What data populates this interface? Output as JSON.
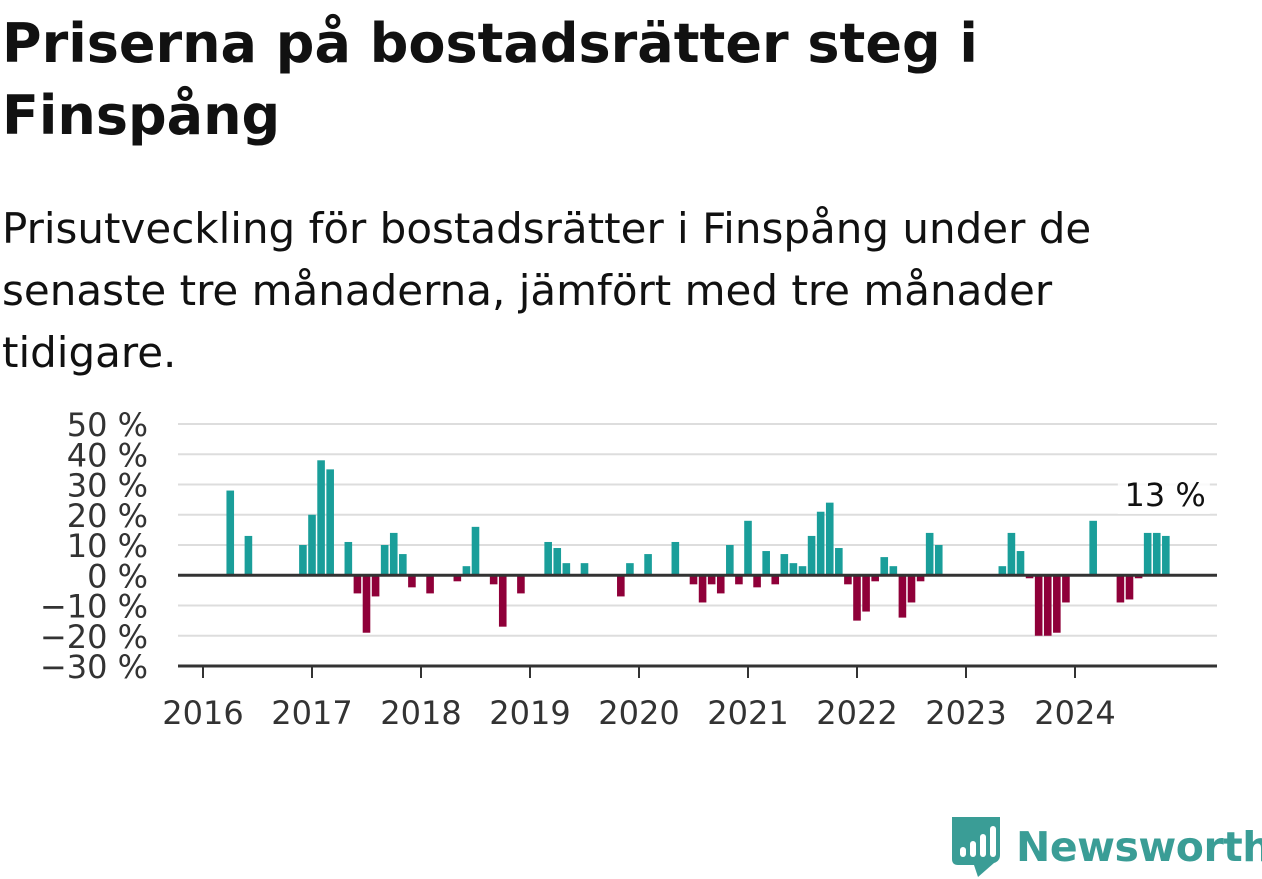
{
  "title": "Priserna på bostadsrätter steg i Finspång",
  "subtitle": "Prisutveckling för bostadsrätter i Finspång under de senaste tre månaderna, jämfört med tre månader tidigare.",
  "brand": {
    "name": "Newsworthy",
    "color": "#3a9d96",
    "logo_icon": "newsworthy-bar-chart-speech-bubble-icon"
  },
  "chart_data": {
    "type": "bar",
    "x_ticks": [
      "2016",
      "2017",
      "2018",
      "2019",
      "2020",
      "2021",
      "2022",
      "2023",
      "2024"
    ],
    "y_ticks": [
      "50 %",
      "40 %",
      "30 %",
      "20 %",
      "10 %",
      "0 %",
      "−10 %",
      "−20 %",
      "−30 %"
    ],
    "ylim": [
      -30,
      50
    ],
    "grid": true,
    "colors": {
      "positive": "#1a9e9a",
      "negative": "#8f0039",
      "grid": "#dddddd",
      "axis": "#333333"
    },
    "annotation": {
      "label": "13 %",
      "at": "2024-11"
    },
    "series": [
      {
        "values": [
          {
            "x": "2016-04",
            "y": 28
          },
          {
            "x": "2016-06",
            "y": 13
          },
          {
            "x": "2016-12",
            "y": 10
          },
          {
            "x": "2017-01",
            "y": 20
          },
          {
            "x": "2017-02",
            "y": 38
          },
          {
            "x": "2017-03",
            "y": 35
          },
          {
            "x": "2017-05",
            "y": 11
          },
          {
            "x": "2017-06",
            "y": -6
          },
          {
            "x": "2017-07",
            "y": -19
          },
          {
            "x": "2017-08",
            "y": -7
          },
          {
            "x": "2017-09",
            "y": 10
          },
          {
            "x": "2017-10",
            "y": 14
          },
          {
            "x": "2017-11",
            "y": 7
          },
          {
            "x": "2017-12",
            "y": -4
          },
          {
            "x": "2018-02",
            "y": -6
          },
          {
            "x": "2018-05",
            "y": -2
          },
          {
            "x": "2018-06",
            "y": 3
          },
          {
            "x": "2018-07",
            "y": 16
          },
          {
            "x": "2018-09",
            "y": -3
          },
          {
            "x": "2018-10",
            "y": -17
          },
          {
            "x": "2018-12",
            "y": -6
          },
          {
            "x": "2019-03",
            "y": 11
          },
          {
            "x": "2019-04",
            "y": 9
          },
          {
            "x": "2019-05",
            "y": 4
          },
          {
            "x": "2019-07",
            "y": 4
          },
          {
            "x": "2019-11",
            "y": -7
          },
          {
            "x": "2019-12",
            "y": 4
          },
          {
            "x": "2020-02",
            "y": 7
          },
          {
            "x": "2020-05",
            "y": 11
          },
          {
            "x": "2020-07",
            "y": -3
          },
          {
            "x": "2020-08",
            "y": -9
          },
          {
            "x": "2020-09",
            "y": -3
          },
          {
            "x": "2020-10",
            "y": -6
          },
          {
            "x": "2020-11",
            "y": 10
          },
          {
            "x": "2020-12",
            "y": -3
          },
          {
            "x": "2021-01",
            "y": 18
          },
          {
            "x": "2021-02",
            "y": -4
          },
          {
            "x": "2021-03",
            "y": 8
          },
          {
            "x": "2021-04",
            "y": -3
          },
          {
            "x": "2021-05",
            "y": 7
          },
          {
            "x": "2021-06",
            "y": 4
          },
          {
            "x": "2021-07",
            "y": 3
          },
          {
            "x": "2021-08",
            "y": 13
          },
          {
            "x": "2021-09",
            "y": 21
          },
          {
            "x": "2021-10",
            "y": 24
          },
          {
            "x": "2021-11",
            "y": 9
          },
          {
            "x": "2021-12",
            "y": -3
          },
          {
            "x": "2022-01",
            "y": -15
          },
          {
            "x": "2022-02",
            "y": -12
          },
          {
            "x": "2022-03",
            "y": -2
          },
          {
            "x": "2022-04",
            "y": 6
          },
          {
            "x": "2022-05",
            "y": 3
          },
          {
            "x": "2022-06",
            "y": -14
          },
          {
            "x": "2022-07",
            "y": -9
          },
          {
            "x": "2022-08",
            "y": -2
          },
          {
            "x": "2022-09",
            "y": 14
          },
          {
            "x": "2022-10",
            "y": 10
          },
          {
            "x": "2023-05",
            "y": 3
          },
          {
            "x": "2023-06",
            "y": 14
          },
          {
            "x": "2023-07",
            "y": 8
          },
          {
            "x": "2023-08",
            "y": -1
          },
          {
            "x": "2023-09",
            "y": -20
          },
          {
            "x": "2023-10",
            "y": -20
          },
          {
            "x": "2023-11",
            "y": -19
          },
          {
            "x": "2023-12",
            "y": -9
          },
          {
            "x": "2024-03",
            "y": 18
          },
          {
            "x": "2024-06",
            "y": -9
          },
          {
            "x": "2024-07",
            "y": -8
          },
          {
            "x": "2024-08",
            "y": -1
          },
          {
            "x": "2024-09",
            "y": 14
          },
          {
            "x": "2024-10",
            "y": 14
          },
          {
            "x": "2024-11",
            "y": 13
          }
        ]
      }
    ]
  }
}
